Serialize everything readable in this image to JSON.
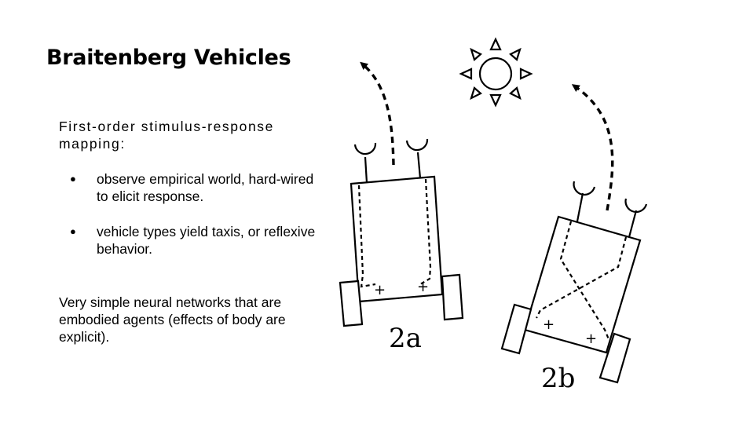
{
  "slide": {
    "title": "Braitenberg Vehicles",
    "intro": "First-order stimulus-response mapping:",
    "bullets": [
      "observe empirical world, hard-wired to elicit response.",
      "vehicle types yield taxis, or reflexive behavior."
    ],
    "outro": "Very simple neural networks that are embodied agents (effects of body are explicit)."
  },
  "figure": {
    "label_a": "2a",
    "label_b": "2b",
    "sign_plus": "+",
    "icons": [
      "sun-icon",
      "sensor-icon",
      "wheel-icon",
      "path-arrow-icon"
    ]
  }
}
